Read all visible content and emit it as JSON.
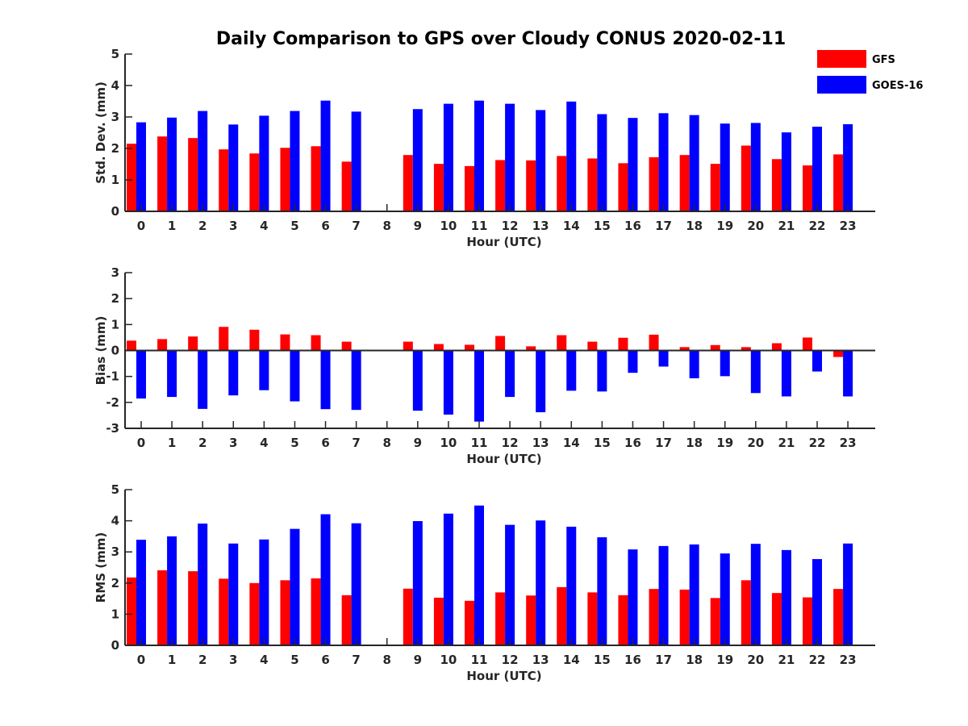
{
  "title": "Daily Comparison to GPS over Cloudy CONUS 2020-02-11",
  "colors": {
    "GFS": "#ff0000",
    "GOES-16": "#0000ff",
    "axis": "#262626"
  },
  "legend": [
    {
      "name": "GFS",
      "color": "#ff0000"
    },
    {
      "name": "GOES-16",
      "color": "#0000ff"
    }
  ],
  "chart_data": [
    {
      "type": "bar",
      "ylabel": "Std. Dev. (mm)",
      "xlabel": "Hour (UTC)",
      "categories": [
        "0",
        "1",
        "2",
        "3",
        "4",
        "5",
        "6",
        "7",
        "8",
        "9",
        "10",
        "11",
        "12",
        "13",
        "14",
        "15",
        "16",
        "17",
        "18",
        "19",
        "20",
        "21",
        "22",
        "23"
      ],
      "ylim": [
        0,
        5
      ],
      "yticks": [
        0,
        1,
        2,
        3,
        4,
        5
      ],
      "series": [
        {
          "name": "GFS",
          "values": [
            2.15,
            2.38,
            2.33,
            1.97,
            1.84,
            2.02,
            2.07,
            1.58,
            null,
            1.79,
            1.51,
            1.44,
            1.63,
            1.62,
            1.76,
            1.68,
            1.53,
            1.72,
            1.79,
            1.51,
            2.09,
            1.66,
            1.46,
            1.81
          ]
        },
        {
          "name": "GOES-16",
          "values": [
            2.83,
            2.98,
            3.19,
            2.76,
            3.04,
            3.19,
            3.52,
            3.17,
            null,
            3.25,
            3.42,
            3.52,
            3.42,
            3.22,
            3.49,
            3.09,
            2.97,
            3.12,
            3.06,
            2.79,
            2.81,
            2.51,
            2.69,
            2.77
          ]
        }
      ]
    },
    {
      "type": "bar",
      "ylabel": "Bias (mm)",
      "xlabel": "Hour (UTC)",
      "categories": [
        "0",
        "1",
        "2",
        "3",
        "4",
        "5",
        "6",
        "7",
        "8",
        "9",
        "10",
        "11",
        "12",
        "13",
        "14",
        "15",
        "16",
        "17",
        "18",
        "19",
        "20",
        "21",
        "22",
        "23"
      ],
      "ylim": [
        -3,
        3
      ],
      "yticks": [
        -3,
        -2,
        -1,
        0,
        1,
        2,
        3
      ],
      "series": [
        {
          "name": "GFS",
          "values": [
            0.38,
            0.44,
            0.54,
            0.91,
            0.8,
            0.62,
            0.59,
            0.34,
            null,
            0.34,
            0.25,
            0.22,
            0.56,
            0.16,
            0.59,
            0.34,
            0.49,
            0.61,
            0.13,
            0.21,
            0.13,
            0.28,
            0.5,
            -0.25
          ]
        },
        {
          "name": "GOES-16",
          "values": [
            -1.85,
            -1.79,
            -2.25,
            -1.73,
            -1.53,
            -1.96,
            -2.26,
            -2.29,
            null,
            -2.32,
            -2.47,
            -2.74,
            -1.79,
            -2.38,
            -1.55,
            -1.58,
            -0.86,
            -0.62,
            -1.07,
            -0.99,
            -1.64,
            -1.77,
            -0.81,
            -1.77
          ]
        }
      ]
    },
    {
      "type": "bar",
      "ylabel": "RMS (mm)",
      "xlabel": "Hour (UTC)",
      "categories": [
        "0",
        "1",
        "2",
        "3",
        "4",
        "5",
        "6",
        "7",
        "8",
        "9",
        "10",
        "11",
        "12",
        "13",
        "14",
        "15",
        "16",
        "17",
        "18",
        "19",
        "20",
        "21",
        "22",
        "23"
      ],
      "ylim": [
        0,
        5
      ],
      "yticks": [
        0,
        1,
        2,
        3,
        4,
        5
      ],
      "series": [
        {
          "name": "GFS",
          "values": [
            2.18,
            2.41,
            2.38,
            2.14,
            2.0,
            2.09,
            2.15,
            1.61,
            null,
            1.82,
            1.53,
            1.43,
            1.7,
            1.6,
            1.87,
            1.7,
            1.61,
            1.81,
            1.79,
            1.52,
            2.09,
            1.68,
            1.54,
            1.81
          ]
        },
        {
          "name": "GOES-16",
          "values": [
            3.39,
            3.5,
            3.91,
            3.27,
            3.4,
            3.74,
            4.21,
            3.92,
            null,
            3.99,
            4.23,
            4.49,
            3.87,
            4.01,
            3.81,
            3.47,
            3.08,
            3.19,
            3.24,
            2.95,
            3.26,
            3.06,
            2.77,
            3.27
          ]
        }
      ]
    }
  ]
}
